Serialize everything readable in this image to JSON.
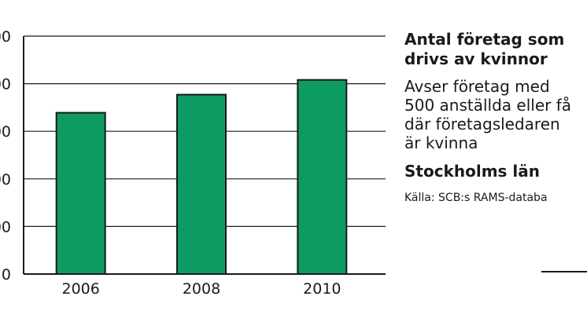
{
  "chart_data": {
    "type": "bar",
    "categories": [
      "2006",
      "2008",
      "2010"
    ],
    "values": [
      3390,
      3770,
      4080
    ],
    "y_tick_labels": [
      "0",
      "00",
      "00",
      "00",
      "00",
      "00"
    ],
    "ylim": [
      0,
      5000
    ],
    "grid": true,
    "bar_color": "#0e9a63",
    "title": "Antal företag som drivs av kvinnor",
    "xlabel": "",
    "ylabel": ""
  },
  "panel": {
    "title_line1": "Antal företag som",
    "title_line2": "drivs av kvinnor",
    "desc_line1": "Avser företag med",
    "desc_line2": "500 anställda eller få",
    "desc_line3": "där företagsledaren",
    "desc_line4": "är kvinna",
    "region": "Stockholms län",
    "source": "Källa: SCB:s RAMS-databa"
  }
}
